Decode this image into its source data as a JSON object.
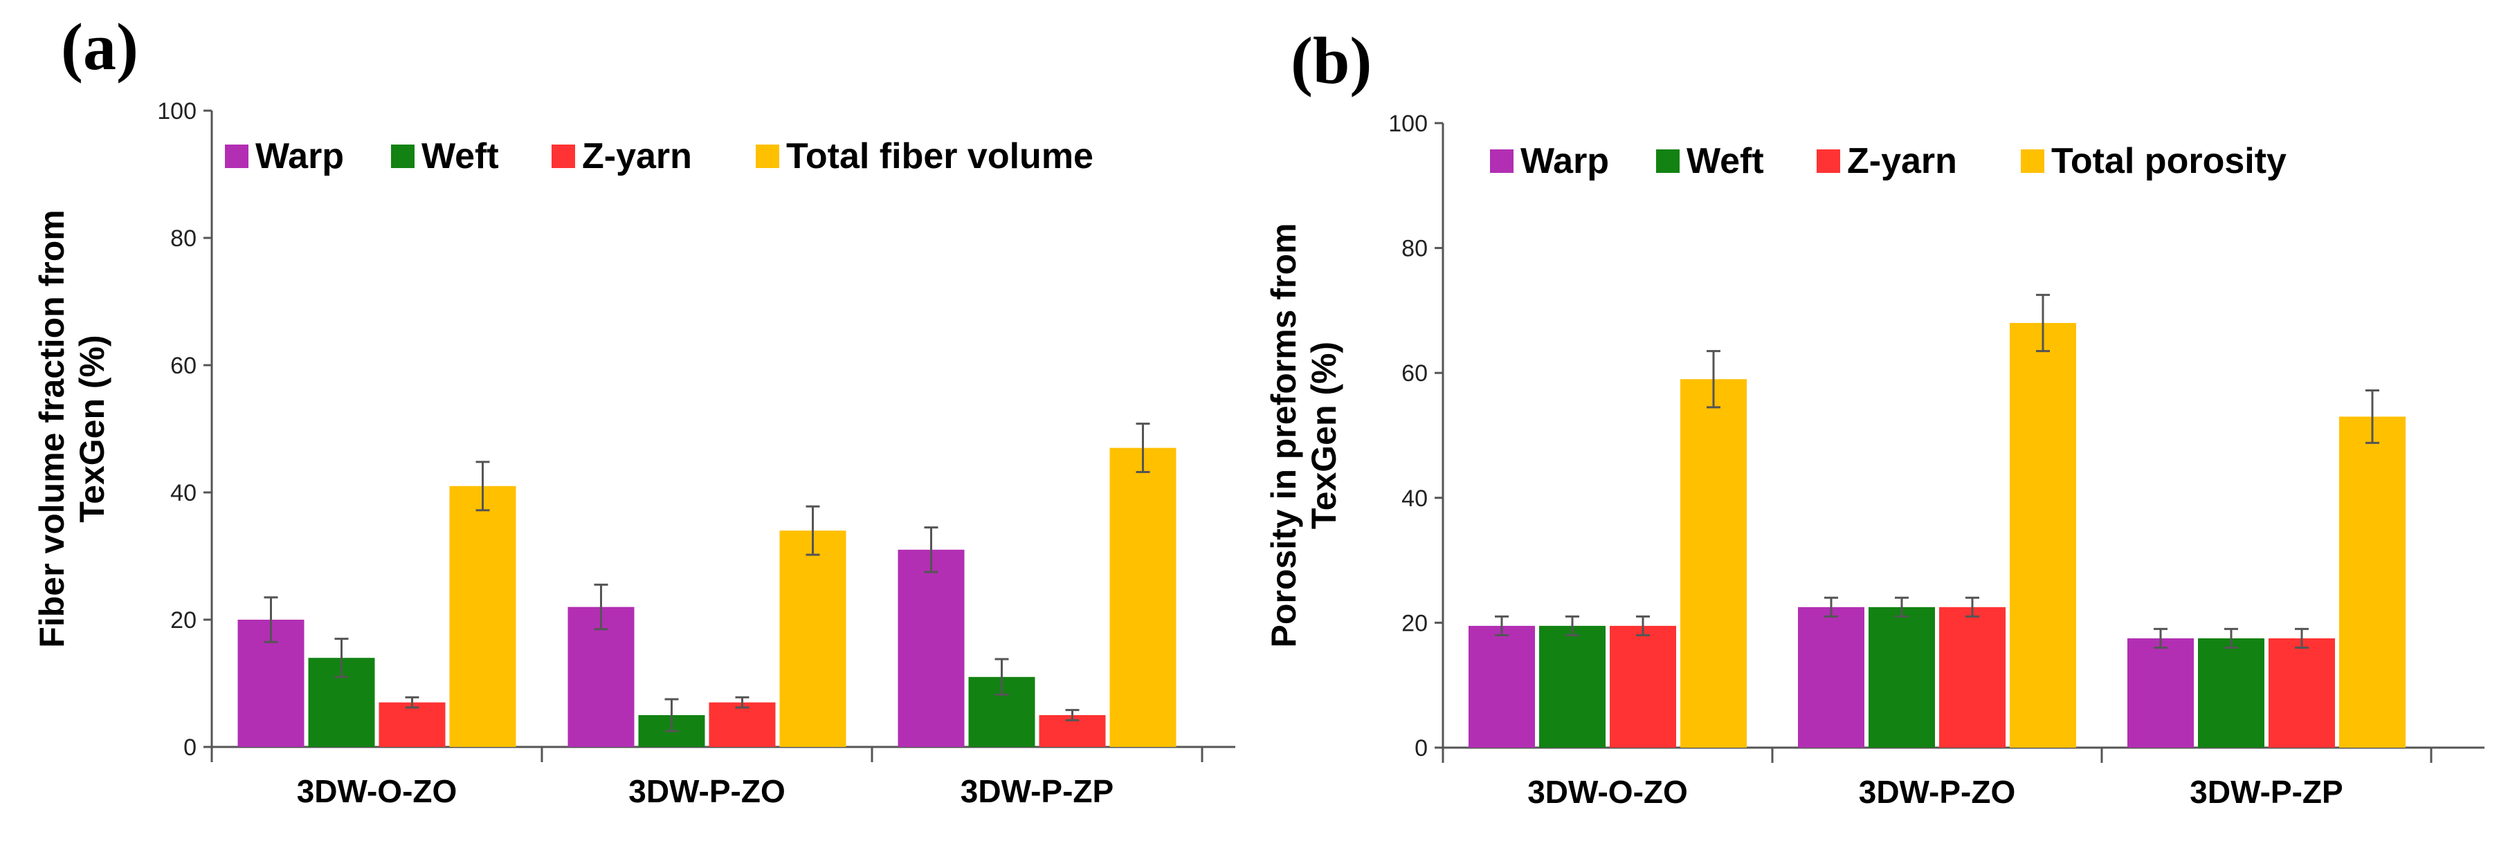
{
  "chart_data": [
    {
      "type": "bar",
      "panel_label": "(a)",
      "ylabel_lines": [
        "Fiber volume fraction from",
        "TexGen (%)"
      ],
      "categories": [
        "3DW-O-ZO",
        "3DW-P-ZO",
        "3DW-P-ZP"
      ],
      "ylim": [
        0,
        100
      ],
      "yticks": [
        0,
        20,
        40,
        60,
        80,
        100
      ],
      "legend_position": "top",
      "series": [
        {
          "name": "Warp",
          "color": "#b22fb3",
          "values": [
            20,
            22,
            31
          ],
          "errors": [
            3.5,
            3.5,
            3.5
          ]
        },
        {
          "name": "Weft",
          "color": "#128212",
          "values": [
            14,
            5,
            11
          ],
          "errors": [
            3,
            2.5,
            2.8
          ]
        },
        {
          "name": "Z-yarn",
          "color": "#ff3333",
          "values": [
            7,
            7,
            5
          ],
          "errors": [
            0.8,
            0.8,
            0.8
          ]
        },
        {
          "name": "Total fiber volume",
          "color": "#ffc000",
          "values": [
            41,
            34,
            47
          ],
          "errors": [
            3.8,
            3.8,
            3.8
          ]
        }
      ]
    },
    {
      "type": "bar",
      "panel_label": "(b)",
      "ylabel_lines": [
        "Porosity in preforms from",
        "TexGen (%)"
      ],
      "categories": [
        "3DW-O-ZO",
        "3DW-P-ZO",
        "3DW-P-ZP"
      ],
      "ylim": [
        0,
        100
      ],
      "yticks": [
        0,
        20,
        40,
        60,
        80,
        100
      ],
      "legend_position": "top",
      "series": [
        {
          "name": "Warp",
          "color": "#b22fb3",
          "values": [
            19.5,
            22.5,
            17.5
          ],
          "errors": [
            1.5,
            1.5,
            1.5
          ]
        },
        {
          "name": "Weft",
          "color": "#128212",
          "values": [
            19.5,
            22.5,
            17.5
          ],
          "errors": [
            1.5,
            1.5,
            1.5
          ]
        },
        {
          "name": "Z-yarn",
          "color": "#ff3333",
          "values": [
            19.5,
            22.5,
            17.5
          ],
          "errors": [
            1.5,
            1.5,
            1.5
          ]
        },
        {
          "name": "Total porosity",
          "color": "#ffc000",
          "values": [
            59,
            68,
            53
          ],
          "errors": [
            4.5,
            4.5,
            4.2
          ]
        }
      ]
    }
  ]
}
